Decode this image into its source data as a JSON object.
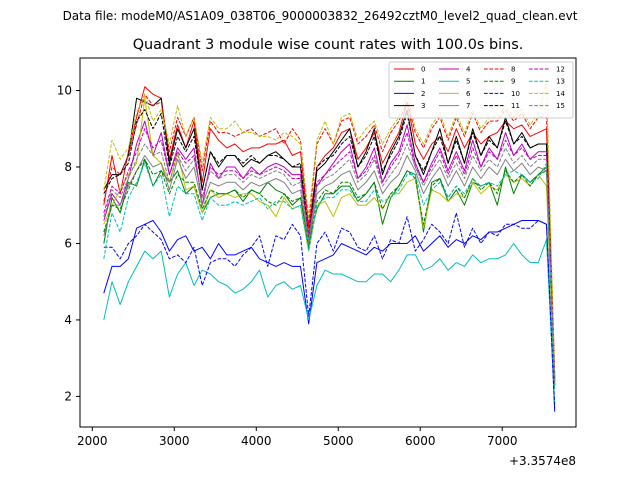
{
  "header": {
    "suptitle": "Data file: modeM0/AS1A09_038T06_9000003832_26492cztM0_level2_quad_clean.evt"
  },
  "chart_data": {
    "type": "line",
    "title": "Quadrant 3 module wise count rates with 100.0s bins.",
    "xlabel": "",
    "ylabel": "",
    "offset_label": "+3.3574e8",
    "xlim": [
      1850,
      7900
    ],
    "ylim": [
      1.2,
      10.85
    ],
    "xticks": [
      2000,
      3000,
      4000,
      5000,
      6000,
      7000
    ],
    "yticks": [
      2,
      4,
      6,
      8,
      10
    ],
    "grid": false,
    "legend_position": "top-right",
    "legend_columns": 4,
    "x": [
      2140,
      2240,
      2340,
      2440,
      2540,
      2640,
      2740,
      2840,
      2940,
      3040,
      3140,
      3240,
      3340,
      3440,
      3540,
      3640,
      3740,
      3840,
      3940,
      4040,
      4140,
      4240,
      4340,
      4440,
      4540,
      4640,
      4740,
      4840,
      4940,
      5040,
      5140,
      5240,
      5340,
      5440,
      5540,
      5640,
      5740,
      5840,
      5940,
      6040,
      6140,
      6240,
      6340,
      6440,
      6540,
      6640,
      6740,
      6840,
      6940,
      7040,
      7140,
      7240,
      7340,
      7440,
      7540,
      7640
    ],
    "series": [
      {
        "name": "0",
        "color": "#ff0000",
        "dash": "solid",
        "values": [
          7.0,
          8.3,
          7.3,
          8.4,
          9.3,
          10.1,
          9.9,
          9.8,
          8.2,
          9.1,
          8.5,
          9.2,
          7.6,
          9.0,
          8.7,
          8.5,
          8.6,
          8.4,
          8.5,
          8.5,
          8.6,
          8.6,
          8.7,
          8.3,
          8.4,
          6.4,
          8.0,
          8.3,
          8.5,
          8.9,
          9.0,
          8.2,
          8.5,
          8.9,
          8.1,
          8.5,
          8.9,
          9.7,
          8.6,
          8.2,
          8.6,
          8.8,
          8.4,
          9.0,
          8.5,
          8.9,
          8.6,
          8.8,
          8.9,
          9.2,
          9.0,
          9.1,
          8.8,
          8.9,
          9.0,
          2.5
        ]
      },
      {
        "name": "1",
        "color": "#008000",
        "dash": "solid",
        "values": [
          6.0,
          7.2,
          6.8,
          7.6,
          7.5,
          8.2,
          7.5,
          7.9,
          7.6,
          7.9,
          7.3,
          7.5,
          6.8,
          7.2,
          7.3,
          7.3,
          7.4,
          7.1,
          7.4,
          7.3,
          7.6,
          7.4,
          7.3,
          7.0,
          7.2,
          6.0,
          6.9,
          7.3,
          7.3,
          7.5,
          7.5,
          7.1,
          7.3,
          7.6,
          6.5,
          7.2,
          7.5,
          7.9,
          7.8,
          6.3,
          7.6,
          7.7,
          7.1,
          7.4,
          7.0,
          7.6,
          7.5,
          7.6,
          7.0,
          8.0,
          7.3,
          7.8,
          7.6,
          7.8,
          8.0,
          2.3
        ]
      },
      {
        "name": "2",
        "color": "#0000ff",
        "dash": "solid",
        "values": [
          4.7,
          5.4,
          5.4,
          5.6,
          6.4,
          6.5,
          6.6,
          6.3,
          5.8,
          6.1,
          6.2,
          5.8,
          5.9,
          5.6,
          6.0,
          5.7,
          5.7,
          5.8,
          5.9,
          5.6,
          5.5,
          5.4,
          5.5,
          5.4,
          5.4,
          3.9,
          5.5,
          5.6,
          5.7,
          6.0,
          5.9,
          5.8,
          5.7,
          5.9,
          5.8,
          6.0,
          6.0,
          6.0,
          6.2,
          5.8,
          6.0,
          6.2,
          5.9,
          6.1,
          6.0,
          6.2,
          6.1,
          6.3,
          6.3,
          6.4,
          6.5,
          6.6,
          6.6,
          6.6,
          6.5,
          1.6
        ]
      },
      {
        "name": "3",
        "color": "#000000",
        "dash": "solid",
        "values": [
          7.4,
          7.8,
          7.8,
          8.3,
          9.8,
          9.7,
          9.6,
          9.8,
          8.1,
          9.0,
          8.5,
          9.0,
          7.4,
          8.4,
          8.0,
          8.3,
          8.3,
          8.0,
          8.2,
          8.1,
          8.3,
          8.4,
          8.2,
          8.0,
          8.0,
          6.1,
          7.9,
          8.1,
          8.4,
          8.7,
          9.0,
          8.0,
          8.4,
          9.0,
          7.8,
          8.4,
          8.8,
          9.5,
          8.3,
          7.8,
          8.4,
          9.0,
          8.1,
          8.8,
          8.1,
          9.0,
          8.3,
          8.8,
          8.5,
          9.3,
          8.6,
          8.9,
          8.5,
          8.6,
          8.6,
          2.4
        ]
      },
      {
        "name": "4",
        "color": "#bf00bf",
        "dash": "solid",
        "values": [
          6.6,
          7.3,
          7.0,
          7.7,
          8.6,
          9.2,
          8.3,
          8.9,
          7.8,
          8.5,
          8.2,
          8.5,
          7.0,
          8.1,
          7.7,
          8.0,
          8.0,
          7.7,
          8.0,
          7.8,
          8.0,
          8.1,
          8.0,
          7.8,
          7.8,
          6.2,
          7.5,
          7.8,
          8.1,
          8.4,
          8.6,
          7.7,
          8.0,
          8.5,
          7.6,
          8.1,
          8.4,
          9.1,
          8.1,
          7.6,
          8.1,
          8.5,
          7.9,
          8.4,
          7.9,
          8.7,
          8.0,
          8.5,
          8.2,
          8.9,
          8.3,
          8.6,
          8.2,
          8.4,
          8.4,
          2.5
        ]
      },
      {
        "name": "5",
        "color": "#00bfbf",
        "dash": "solid",
        "values": [
          4.0,
          5.0,
          4.4,
          5.0,
          5.4,
          5.8,
          5.6,
          5.8,
          4.6,
          5.2,
          5.5,
          4.9,
          5.3,
          5.2,
          5.0,
          4.9,
          4.7,
          4.8,
          5.0,
          5.3,
          4.6,
          4.9,
          5.0,
          4.8,
          4.9,
          4.0,
          4.9,
          5.3,
          5.2,
          5.2,
          5.1,
          5.0,
          5.0,
          5.2,
          5.2,
          5.0,
          5.3,
          5.7,
          5.7,
          5.3,
          5.4,
          5.6,
          5.3,
          5.5,
          5.4,
          5.7,
          5.5,
          5.6,
          5.6,
          5.7,
          6.0,
          5.7,
          5.5,
          5.5,
          6.1,
          1.8
        ]
      },
      {
        "name": "6",
        "color": "#bfbf00",
        "dash": "solid",
        "values": [
          6.5,
          7.0,
          7.4,
          7.8,
          8.1,
          9.8,
          8.3,
          8.1,
          7.6,
          8.4,
          7.4,
          7.5,
          6.8,
          7.4,
          7.2,
          7.3,
          7.2,
          7.3,
          7.3,
          7.1,
          7.0,
          6.7,
          7.2,
          6.9,
          7.0,
          5.8,
          7.0,
          7.1,
          6.7,
          7.2,
          7.3,
          7.0,
          7.0,
          7.2,
          6.9,
          7.3,
          7.3,
          7.6,
          7.7,
          6.4,
          7.4,
          7.3,
          7.1,
          7.3,
          7.2,
          7.6,
          7.3,
          7.5,
          7.4,
          7.8,
          7.6,
          7.7,
          7.5,
          7.8,
          7.5,
          2.2
        ]
      },
      {
        "name": "7",
        "color": "#808080",
        "dash": "solid",
        "values": [
          6.2,
          7.0,
          7.0,
          7.5,
          7.9,
          8.3,
          8.0,
          8.1,
          7.4,
          8.2,
          7.7,
          8.0,
          7.0,
          7.6,
          7.5,
          7.6,
          7.6,
          7.4,
          7.6,
          7.5,
          7.6,
          7.7,
          7.6,
          7.3,
          7.4,
          6.0,
          7.3,
          7.5,
          7.6,
          7.8,
          7.9,
          7.4,
          7.6,
          7.9,
          7.3,
          7.6,
          7.8,
          8.3,
          7.9,
          7.3,
          7.7,
          8.0,
          7.5,
          7.9,
          7.5,
          8.0,
          7.7,
          8.0,
          7.8,
          8.2,
          7.9,
          8.1,
          7.8,
          8.0,
          7.9,
          2.3
        ]
      },
      {
        "name": "8",
        "color": "#ff0000",
        "dash": "dashed",
        "values": [
          7.1,
          8.0,
          7.8,
          8.3,
          9.1,
          9.9,
          9.6,
          9.7,
          8.4,
          9.3,
          8.8,
          9.3,
          7.9,
          9.2,
          8.9,
          8.9,
          8.8,
          8.9,
          9.0,
          8.8,
          8.9,
          9.0,
          8.6,
          9.0,
          8.7,
          6.5,
          8.6,
          9.0,
          8.6,
          9.2,
          9.3,
          8.6,
          8.8,
          9.1,
          8.4,
          8.9,
          9.2,
          9.7,
          8.9,
          8.5,
          9.0,
          9.3,
          8.7,
          9.3,
          8.8,
          9.4,
          8.9,
          9.2,
          9.2,
          9.5,
          9.2,
          9.4,
          9.0,
          9.3,
          9.3,
          2.6
        ]
      },
      {
        "name": "9",
        "color": "#008000",
        "dash": "dashed",
        "values": [
          6.3,
          7.0,
          6.9,
          7.4,
          7.9,
          8.2,
          7.8,
          7.9,
          7.3,
          7.8,
          7.6,
          7.6,
          6.9,
          7.4,
          7.3,
          7.3,
          7.4,
          7.2,
          7.4,
          7.3,
          7.1,
          7.0,
          7.3,
          7.1,
          7.2,
          5.9,
          7.1,
          7.4,
          7.3,
          7.6,
          7.6,
          7.2,
          7.3,
          7.6,
          6.9,
          7.3,
          7.5,
          7.9,
          7.7,
          6.5,
          7.5,
          7.7,
          7.2,
          7.5,
          7.2,
          7.7,
          7.4,
          7.6,
          7.3,
          7.9,
          7.6,
          7.8,
          7.5,
          7.8,
          7.9,
          2.3
        ]
      },
      {
        "name": "10",
        "color": "#0000ff",
        "dash": "dashed",
        "values": [
          5.9,
          5.9,
          5.6,
          6.0,
          6.2,
          6.5,
          6.3,
          6.1,
          5.6,
          5.7,
          5.5,
          5.9,
          4.9,
          5.5,
          5.6,
          5.6,
          5.4,
          5.7,
          5.9,
          6.2,
          5.4,
          6.2,
          6.1,
          6.5,
          6.2,
          4.1,
          6.0,
          6.3,
          5.8,
          6.4,
          6.3,
          5.9,
          5.8,
          6.2,
          5.6,
          6.1,
          6.0,
          6.7,
          5.8,
          6.1,
          6.5,
          6.3,
          6.0,
          6.8,
          5.9,
          6.4,
          6.0,
          6.3,
          6.2,
          6.5,
          6.5,
          6.4,
          6.4,
          6.6,
          6.5,
          1.7
        ]
      },
      {
        "name": "11",
        "color": "#000000",
        "dash": "dashed",
        "values": [
          7.3,
          7.7,
          7.8,
          8.1,
          9.2,
          9.5,
          9.0,
          9.4,
          8.0,
          8.8,
          8.4,
          8.8,
          7.4,
          8.4,
          8.1,
          8.3,
          8.3,
          8.1,
          8.3,
          8.1,
          8.3,
          8.3,
          8.2,
          8.0,
          8.1,
          6.2,
          8.0,
          8.2,
          8.3,
          8.6,
          8.8,
          8.0,
          8.3,
          8.8,
          7.9,
          8.3,
          8.7,
          9.4,
          8.3,
          7.9,
          8.4,
          8.8,
          8.1,
          8.7,
          8.1,
          8.9,
          8.3,
          8.7,
          8.5,
          9.2,
          8.6,
          8.8,
          8.5,
          8.6,
          8.6,
          2.4
        ]
      },
      {
        "name": "12",
        "color": "#bf00bf",
        "dash": "dashed",
        "values": [
          6.8,
          7.5,
          7.3,
          7.9,
          8.4,
          9.0,
          8.5,
          8.7,
          7.8,
          8.4,
          8.1,
          8.3,
          7.2,
          8.0,
          7.8,
          7.9,
          7.9,
          7.7,
          7.9,
          7.8,
          7.9,
          8.0,
          7.9,
          7.7,
          7.7,
          6.2,
          7.6,
          7.8,
          8.0,
          8.2,
          8.4,
          7.7,
          7.9,
          8.3,
          7.6,
          8.0,
          8.3,
          8.9,
          8.0,
          7.6,
          8.0,
          8.4,
          7.8,
          8.3,
          7.8,
          8.5,
          8.0,
          8.4,
          8.2,
          8.7,
          8.3,
          8.5,
          8.2,
          8.3,
          8.3,
          2.4
        ]
      },
      {
        "name": "13",
        "color": "#00bfbf",
        "dash": "dashed",
        "values": [
          5.6,
          6.8,
          6.3,
          7.2,
          7.6,
          8.1,
          7.5,
          7.8,
          6.7,
          7.5,
          7.3,
          7.3,
          6.6,
          7.2,
          7.0,
          7.0,
          7.1,
          7.0,
          7.1,
          7.2,
          6.9,
          7.1,
          7.1,
          6.9,
          7.0,
          5.8,
          7.0,
          7.2,
          7.2,
          7.4,
          7.4,
          7.1,
          7.1,
          7.4,
          7.1,
          7.2,
          7.4,
          7.8,
          7.8,
          7.0,
          7.4,
          7.6,
          7.2,
          7.5,
          7.3,
          7.7,
          7.5,
          7.6,
          7.5,
          7.8,
          7.9,
          7.8,
          7.6,
          7.7,
          8.1,
          2.2
        ]
      },
      {
        "name": "14",
        "color": "#bfbf00",
        "dash": "dashed",
        "values": [
          7.4,
          8.7,
          8.2,
          8.5,
          9.4,
          9.9,
          9.2,
          9.5,
          8.6,
          9.6,
          8.8,
          9.3,
          8.1,
          9.3,
          9.0,
          9.0,
          9.2,
          8.9,
          8.9,
          8.8,
          8.8,
          8.7,
          8.9,
          8.8,
          8.6,
          6.7,
          8.7,
          9.2,
          8.6,
          9.3,
          9.4,
          8.7,
          9.0,
          9.2,
          8.6,
          9.0,
          9.3,
          9.9,
          9.0,
          8.6,
          9.1,
          9.4,
          8.8,
          9.4,
          8.9,
          9.5,
          9.0,
          9.3,
          9.3,
          9.6,
          9.3,
          9.5,
          9.1,
          9.4,
          10.2,
          2.6
        ]
      },
      {
        "name": "15",
        "color": "#808080",
        "dash": "dashed",
        "values": [
          6.7,
          7.4,
          7.2,
          7.7,
          8.2,
          8.6,
          8.3,
          8.4,
          7.6,
          8.3,
          7.9,
          8.2,
          7.2,
          7.9,
          7.7,
          7.8,
          7.8,
          7.6,
          7.8,
          7.7,
          7.8,
          7.9,
          7.8,
          7.5,
          7.6,
          6.1,
          7.5,
          7.7,
          7.8,
          8.0,
          8.2,
          7.6,
          7.8,
          8.2,
          7.5,
          7.8,
          8.1,
          8.6,
          8.0,
          7.5,
          7.9,
          8.2,
          7.7,
          8.1,
          7.7,
          8.3,
          7.9,
          8.2,
          8.0,
          8.5,
          8.1,
          8.3,
          8.0,
          8.2,
          8.2,
          2.4
        ]
      }
    ]
  }
}
